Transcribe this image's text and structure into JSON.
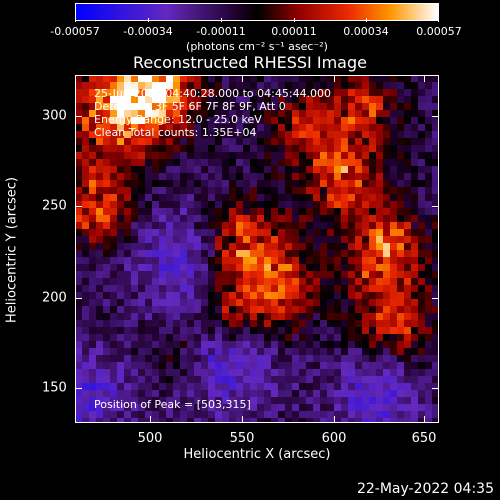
{
  "colorbar": {
    "labels": [
      "-0.00057",
      "-0.00034",
      "-0.00011",
      "0.00011",
      "0.00034",
      "0.00057"
    ],
    "units": "(photons cm⁻² s⁻¹ asec⁻²)"
  },
  "title": "Reconstructed RHESSI Image",
  "info": {
    "time": "25-Jun-2015 04:40:28.000 to 04:45:44.000",
    "detectors": "Detectors: 3F 5F 6F 7F 8F 9F, Att 0",
    "energy": "Energy Range: 12.0 - 25.0 keV",
    "clean": "Clean     Total counts: 1.35E+04"
  },
  "peak": "Position of Peak = [503,315]",
  "axes": {
    "x_label": "Heliocentric X (arcsec)",
    "y_label": "Heliocentric Y (arcsec)",
    "x_ticks": [
      "500",
      "550",
      "600",
      "650"
    ],
    "y_ticks": [
      "150",
      "200",
      "250",
      "300"
    ]
  },
  "date": "22-May-2022 04:35"
}
